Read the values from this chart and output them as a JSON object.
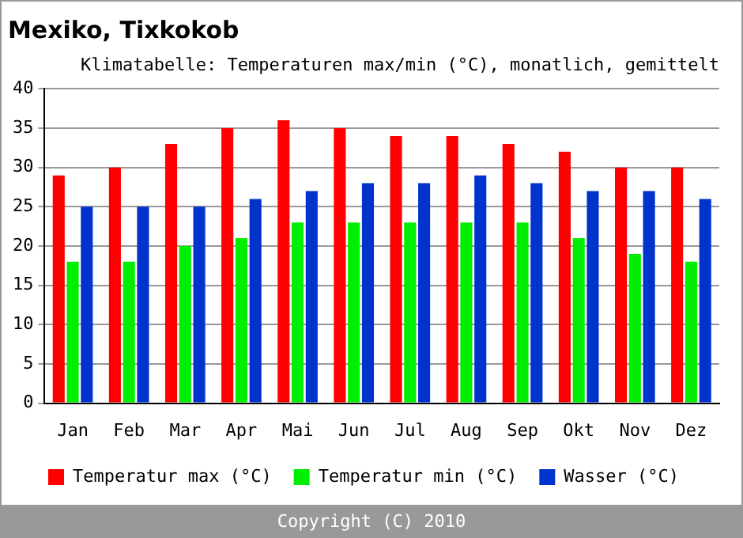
{
  "chart_data": {
    "type": "bar",
    "title": "Mexiko, Tixkokob",
    "subtitle": "Klimatabelle: Temperaturen max/min (°C), monatlich, gemittelt",
    "categories": [
      "Jan",
      "Feb",
      "Mar",
      "Apr",
      "Mai",
      "Jun",
      "Jul",
      "Aug",
      "Sep",
      "Okt",
      "Nov",
      "Dez"
    ],
    "series": [
      {
        "name": "Temperatur max (°C)",
        "color": "#ff0000",
        "values": [
          29,
          30,
          33,
          35,
          36,
          35,
          34,
          34,
          33,
          32,
          30,
          30
        ]
      },
      {
        "name": "Temperatur min (°C)",
        "color": "#00ee00",
        "values": [
          18,
          18,
          20,
          21,
          23,
          23,
          23,
          23,
          23,
          21,
          19,
          18
        ]
      },
      {
        "name": "Wasser (°C)",
        "color": "#0033cc",
        "values": [
          25,
          25,
          25,
          26,
          27,
          28,
          28,
          29,
          28,
          27,
          27,
          26
        ]
      }
    ],
    "ylim": [
      0,
      40
    ],
    "yticks": [
      0,
      5,
      10,
      15,
      20,
      25,
      30,
      35,
      40
    ],
    "grid": "y",
    "legend": "bottom",
    "annotations": [
      "Copyright (C) 2010"
    ]
  }
}
